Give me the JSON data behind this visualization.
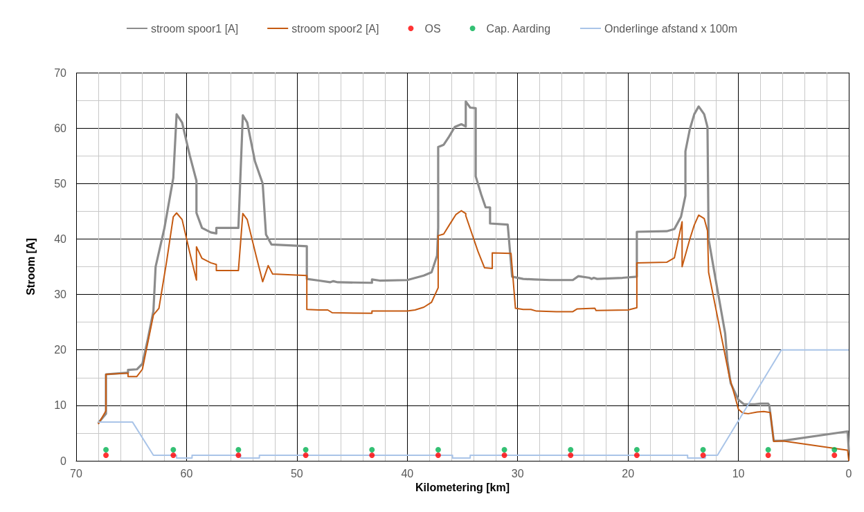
{
  "chart_data": {
    "type": "line",
    "xlabel": "Kilometering [km]",
    "ylabel": "Stroom [A]",
    "xlim": [
      70,
      0
    ],
    "xticks": [
      70,
      60,
      50,
      40,
      30,
      20,
      10,
      0
    ],
    "ylim": [
      0,
      70
    ],
    "yticks": [
      0,
      10,
      20,
      30,
      40,
      50,
      60,
      70
    ],
    "grid": true,
    "legend": "top",
    "marker": "none",
    "line_style": "solid",
    "series": [
      {
        "name": "stroom spoor1 [A]",
        "color": "#8c8c8c",
        "x": [
          68.0,
          67.3,
          67.3,
          65.3,
          65.3,
          64.5,
          64.0,
          63.5,
          63.0,
          62.8,
          62.0,
          61.2,
          60.9,
          60.4,
          59.7,
          59.1,
          59.1,
          58.6,
          57.8,
          57.3,
          57.3,
          55.3,
          54.9,
          54.5,
          53.8,
          53.1,
          52.8,
          52.3,
          49.1,
          49.1,
          48.0,
          47.0,
          46.7,
          46.3,
          43.2,
          43.2,
          42.5,
          40.0,
          38.5,
          37.8,
          37.3,
          37.2,
          37.2,
          36.7,
          36.2,
          35.7,
          35.1,
          34.7,
          34.7,
          34.3,
          33.8,
          33.8,
          33.3,
          32.9,
          32.5,
          32.5,
          30.9,
          30.5,
          29.5,
          28.5,
          27.0,
          25.0,
          24.5,
          23.5,
          23.3,
          23.1,
          22.8,
          20.5,
          19.2,
          19.2,
          16.5,
          15.8,
          15.2,
          14.8,
          14.8,
          14.4,
          14.0,
          13.6,
          13.1,
          12.8,
          12.7,
          12.0,
          11.2,
          11.0,
          10.7,
          10.0,
          9.5,
          8.5,
          8.0,
          7.3,
          7.2,
          6.8,
          6.0,
          0.1,
          0.0
        ],
        "values": [
          6.8,
          8.5,
          15.6,
          15.9,
          16.4,
          16.5,
          17.5,
          22,
          27,
          35,
          42,
          51,
          62.5,
          61,
          55,
          50.5,
          44.7,
          42,
          41.2,
          41,
          42,
          42,
          62.3,
          61,
          54,
          50,
          40.8,
          39,
          38.7,
          32.8,
          32.5,
          32.2,
          32.4,
          32.2,
          32.1,
          32.7,
          32.5,
          32.6,
          33.4,
          34.0,
          37,
          42,
          56.6,
          57,
          58.5,
          60.2,
          60.7,
          60.3,
          64.8,
          63.7,
          63.6,
          51.3,
          48,
          45.7,
          45.7,
          42.8,
          42.6,
          33.2,
          32.8,
          32.7,
          32.6,
          32.6,
          33.3,
          33.0,
          32.8,
          33.0,
          32.8,
          33.0,
          33.2,
          41.3,
          41.4,
          41.8,
          44,
          47.8,
          55.8,
          59.8,
          62.5,
          63.9,
          62.5,
          60.2,
          40,
          32,
          23,
          18,
          14,
          11,
          10.2,
          10.2,
          10.3,
          10.3,
          10,
          3.6,
          3.6,
          5.3,
          1.9
        ]
      },
      {
        "name": "stroom spoor2 [A]",
        "color": "#c55a11",
        "x": [
          68.0,
          67.3,
          67.3,
          65.3,
          65.3,
          64.5,
          64.0,
          63.0,
          62.5,
          61.8,
          61.2,
          60.9,
          60.4,
          59.7,
          59.1,
          59.1,
          58.6,
          57.8,
          57.3,
          57.3,
          55.3,
          54.9,
          54.5,
          53.7,
          53.1,
          52.6,
          52.2,
          49.1,
          49.1,
          48.0,
          47.2,
          46.8,
          43.2,
          43.2,
          40.0,
          39.3,
          38.5,
          37.8,
          37.2,
          37.2,
          36.7,
          36.2,
          35.6,
          35.1,
          34.7,
          34.7,
          33.6,
          33.0,
          32.3,
          32.3,
          30.6,
          30.2,
          29.5,
          28.8,
          28.3,
          26.5,
          25.0,
          24.6,
          23.0,
          22.9,
          20.0,
          19.2,
          19.2,
          16.5,
          15.8,
          15.1,
          15.1,
          14.4,
          14.0,
          13.6,
          13.1,
          12.8,
          12.7,
          12.0,
          11.3,
          10.8,
          10.3,
          10.0,
          9.6,
          9.1,
          8.3,
          7.7,
          7.1,
          6.8,
          6.0,
          0.1,
          0.0
        ],
        "values": [
          6.6,
          9,
          15.6,
          15.8,
          15.2,
          15.2,
          16.5,
          26.3,
          27.5,
          36,
          44,
          44.7,
          43.5,
          37.5,
          32.6,
          38.6,
          36.5,
          35.7,
          35.4,
          34.3,
          34.3,
          44.6,
          43.5,
          37,
          32.3,
          35.2,
          33.7,
          33.4,
          27.3,
          27.2,
          27.2,
          26.7,
          26.6,
          27,
          27.0,
          27.2,
          27.7,
          28.6,
          31.2,
          40.6,
          40.9,
          42.5,
          44.4,
          45.1,
          44.6,
          44.2,
          37.8,
          34.8,
          34.7,
          37.5,
          37.4,
          27.5,
          27.3,
          27.3,
          27.0,
          26.9,
          26.9,
          27.4,
          27.5,
          27.1,
          27.2,
          27.6,
          35.7,
          35.8,
          36.6,
          43.1,
          35.0,
          40.0,
          42.5,
          44.3,
          43.7,
          41.5,
          34.0,
          27,
          20,
          15,
          11.5,
          9.3,
          8.6,
          8.5,
          8.8,
          8.9,
          8.7,
          3.5,
          3.6,
          1.9,
          0
        ]
      },
      {
        "name": "OS",
        "type": "scatter",
        "marker": "circle",
        "color": "#ff0000",
        "x": [
          67.3,
          61.2,
          55.3,
          49.2,
          43.2,
          37.2,
          31.2,
          25.2,
          19.2,
          13.2,
          7.3,
          1.3
        ],
        "values": [
          1,
          1,
          1,
          1,
          1,
          1,
          1,
          1,
          1,
          1,
          1,
          1
        ]
      },
      {
        "name": "Cap. Aarding",
        "type": "scatter",
        "marker": "circle",
        "color": "#00b050",
        "x": [
          67.3,
          61.2,
          55.3,
          49.2,
          43.2,
          37.2,
          31.2,
          25.2,
          19.2,
          13.2,
          7.3,
          1.3
        ],
        "values": [
          2,
          2,
          2,
          2,
          2,
          2,
          2,
          2,
          2,
          2,
          2,
          2
        ]
      },
      {
        "name": "Onderlinge afstand x 100m",
        "color": "#a9c4e8",
        "x": [
          68.0,
          64.9,
          63.0,
          60.9,
          60.9,
          59.5,
          59.5,
          55.1,
          55.1,
          53.4,
          53.4,
          35.9,
          35.9,
          34.3,
          34.3,
          14.6,
          14.6,
          13.0,
          13.0,
          11.9,
          6.1,
          0.0
        ],
        "values": [
          7,
          7,
          1,
          1,
          0.5,
          0.5,
          1,
          1,
          0.5,
          0.5,
          1,
          1,
          0.5,
          0.5,
          1,
          1,
          0.5,
          0.5,
          1,
          1,
          20,
          20
        ]
      }
    ]
  }
}
